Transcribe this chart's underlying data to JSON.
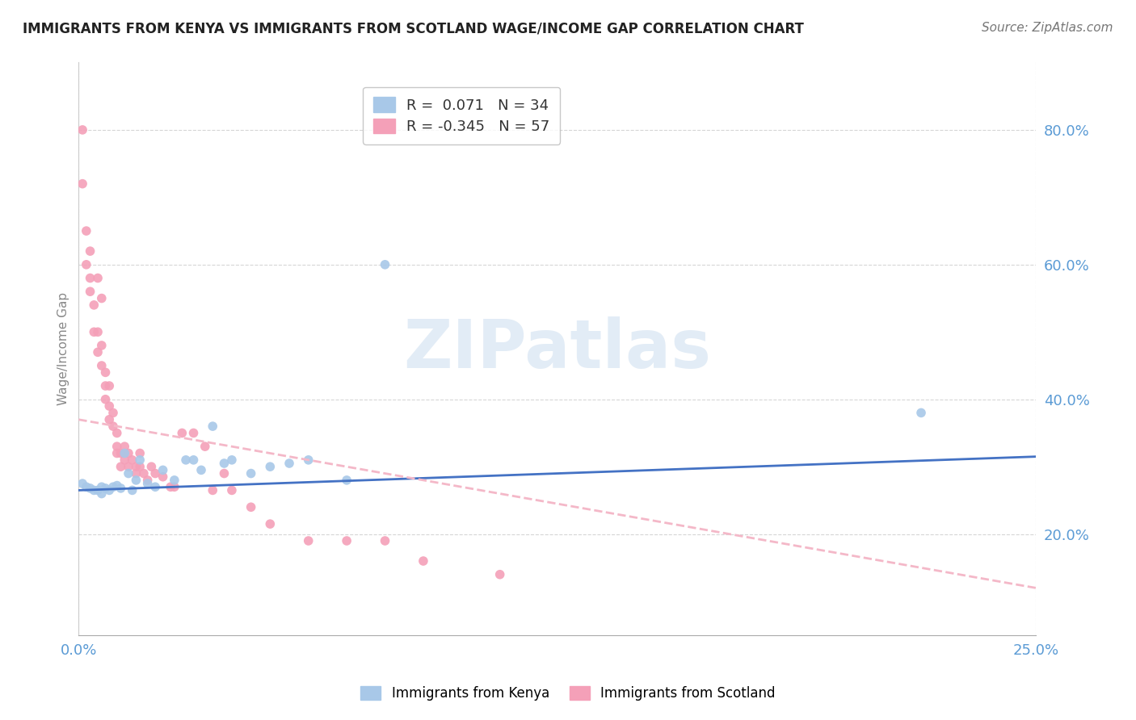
{
  "title": "IMMIGRANTS FROM KENYA VS IMMIGRANTS FROM SCOTLAND WAGE/INCOME GAP CORRELATION CHART",
  "source": "Source: ZipAtlas.com",
  "ylabel": "Wage/Income Gap",
  "kenya_R": 0.071,
  "kenya_N": 34,
  "scotland_R": -0.345,
  "scotland_N": 57,
  "kenya_color": "#a8c8e8",
  "scotland_color": "#f4a0b8",
  "kenya_line_color": "#4472c4",
  "scotland_line_color": "#f4b8c8",
  "xlim": [
    0,
    0.25
  ],
  "ylim": [
    0.05,
    0.9
  ],
  "yticks": [
    0.2,
    0.4,
    0.6,
    0.8
  ],
  "ytick_labels": [
    "20.0%",
    "40.0%",
    "60.0%",
    "80.0%"
  ],
  "xtick_vals": [
    0.0,
    0.25
  ],
  "xtick_labels": [
    "0.0%",
    "25.0%"
  ],
  "kenya_scatter_x": [
    0.001,
    0.002,
    0.003,
    0.004,
    0.005,
    0.006,
    0.006,
    0.007,
    0.008,
    0.009,
    0.01,
    0.011,
    0.012,
    0.013,
    0.014,
    0.015,
    0.016,
    0.018,
    0.02,
    0.022,
    0.025,
    0.028,
    0.03,
    0.032,
    0.035,
    0.038,
    0.04,
    0.045,
    0.05,
    0.055,
    0.06,
    0.07,
    0.08,
    0.22
  ],
  "kenya_scatter_y": [
    0.275,
    0.27,
    0.268,
    0.265,
    0.265,
    0.27,
    0.26,
    0.268,
    0.265,
    0.27,
    0.272,
    0.268,
    0.32,
    0.29,
    0.265,
    0.28,
    0.31,
    0.275,
    0.27,
    0.295,
    0.28,
    0.31,
    0.31,
    0.295,
    0.36,
    0.305,
    0.31,
    0.29,
    0.3,
    0.305,
    0.31,
    0.28,
    0.6,
    0.38
  ],
  "scotland_scatter_x": [
    0.001,
    0.001,
    0.002,
    0.002,
    0.003,
    0.003,
    0.003,
    0.004,
    0.004,
    0.005,
    0.005,
    0.005,
    0.006,
    0.006,
    0.006,
    0.007,
    0.007,
    0.007,
    0.008,
    0.008,
    0.008,
    0.009,
    0.009,
    0.01,
    0.01,
    0.01,
    0.011,
    0.011,
    0.012,
    0.012,
    0.013,
    0.013,
    0.014,
    0.015,
    0.015,
    0.016,
    0.016,
    0.017,
    0.018,
    0.019,
    0.02,
    0.022,
    0.024,
    0.025,
    0.027,
    0.03,
    0.033,
    0.035,
    0.038,
    0.04,
    0.045,
    0.05,
    0.06,
    0.07,
    0.08,
    0.09,
    0.11
  ],
  "scotland_scatter_y": [
    0.8,
    0.72,
    0.65,
    0.6,
    0.62,
    0.58,
    0.56,
    0.54,
    0.5,
    0.5,
    0.47,
    0.58,
    0.48,
    0.45,
    0.55,
    0.44,
    0.42,
    0.4,
    0.42,
    0.39,
    0.37,
    0.38,
    0.36,
    0.35,
    0.33,
    0.32,
    0.32,
    0.3,
    0.33,
    0.31,
    0.32,
    0.3,
    0.31,
    0.3,
    0.29,
    0.3,
    0.32,
    0.29,
    0.28,
    0.3,
    0.29,
    0.285,
    0.27,
    0.27,
    0.35,
    0.35,
    0.33,
    0.265,
    0.29,
    0.265,
    0.24,
    0.215,
    0.19,
    0.19,
    0.19,
    0.16,
    0.14
  ],
  "watermark_text": "ZIPatlas",
  "watermark_color": "#d0e0f0",
  "background_color": "#ffffff"
}
